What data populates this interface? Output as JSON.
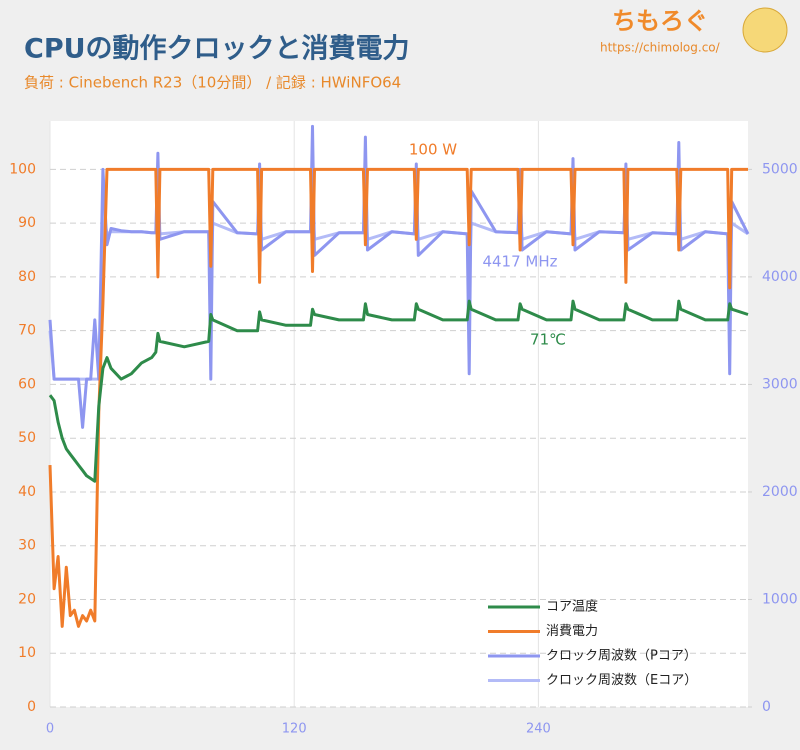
{
  "logo": {
    "name": "ちもろぐ",
    "url": "https://chimolog.co/"
  },
  "chart_data": {
    "type": "line",
    "title": "CPUの動作クロックと消費電力",
    "subtitle": "負荷 : Cinebench R23（10分間） / 記録 : HWiNFO64",
    "annotations": [
      "100 W",
      "4417 MHz",
      "71℃"
    ],
    "x": [
      0,
      2,
      4,
      6,
      8,
      10,
      12,
      14,
      16,
      18,
      20,
      22,
      24,
      26,
      28,
      30,
      35,
      40,
      45,
      50,
      52,
      53,
      54,
      66,
      78,
      79,
      80,
      92,
      102,
      103,
      104,
      116,
      128,
      129,
      130,
      142,
      154,
      155,
      156,
      168,
      179,
      180,
      181,
      193,
      205,
      206,
      207,
      219,
      230,
      231,
      232,
      244,
      256,
      257,
      258,
      270,
      282,
      283,
      284,
      296,
      308,
      309,
      310,
      322,
      333,
      334,
      335,
      343
    ],
    "xlim": [
      0,
      343
    ],
    "xticks": [
      0,
      120,
      240
    ],
    "ylim": [
      0,
      109
    ],
    "yticks": [
      0,
      10,
      20,
      30,
      40,
      50,
      60,
      70,
      80,
      90,
      100
    ],
    "y2lim": [
      0,
      5450
    ],
    "y2ticks": [
      0,
      1000,
      2000,
      3000,
      4000,
      5000
    ],
    "grid": true,
    "legend": "lower right",
    "series": [
      {
        "name": "コア温度",
        "color": "#2e8b4a",
        "values": [
          58,
          57,
          53,
          50,
          48,
          47,
          46,
          45,
          44,
          43,
          42.5,
          42,
          56,
          63,
          65,
          63,
          61,
          62,
          64,
          65,
          66,
          69.5,
          68,
          67,
          68,
          73,
          72,
          70,
          70,
          73.5,
          72,
          71,
          71,
          74,
          73,
          72,
          72,
          75,
          73,
          72,
          72,
          75,
          74,
          72,
          72,
          75.5,
          74,
          72,
          72,
          75,
          74,
          72,
          72,
          75.5,
          74,
          72,
          72,
          75,
          74,
          72,
          72,
          75.5,
          74,
          72,
          72,
          75,
          74,
          73
        ]
      },
      {
        "name": "消費電力",
        "color": "#f07c2a",
        "values": [
          45,
          22,
          28,
          15,
          26,
          17,
          18,
          15,
          17,
          16,
          18,
          16,
          55,
          75,
          100,
          100,
          100,
          100,
          100,
          100,
          100,
          80,
          100,
          100,
          100,
          82,
          100,
          100,
          100,
          79,
          100,
          100,
          100,
          81,
          100,
          100,
          100,
          86,
          100,
          100,
          100,
          87,
          100,
          100,
          100,
          86,
          100,
          100,
          100,
          85,
          100,
          100,
          100,
          86,
          100,
          100,
          100,
          79,
          100,
          100,
          100,
          85,
          100,
          100,
          100,
          78,
          100,
          100
        ]
      },
      {
        "name": "クロック周波数（Pコア）",
        "color": "#8e96f0",
        "axis": "y2",
        "values": [
          3600,
          3050,
          3050,
          3050,
          3050,
          3050,
          3050,
          3050,
          2600,
          3050,
          3050,
          3600,
          3050,
          5000,
          4300,
          4450,
          4430,
          4420,
          4420,
          4410,
          4410,
          5150,
          4350,
          4420,
          4420,
          3050,
          4700,
          4410,
          4400,
          5050,
          4250,
          4420,
          4420,
          5400,
          4200,
          4410,
          4410,
          5300,
          4250,
          4420,
          4400,
          5050,
          4200,
          4420,
          4400,
          3100,
          4800,
          4420,
          4410,
          5000,
          4250,
          4420,
          4400,
          5100,
          4250,
          4420,
          4410,
          5050,
          4250,
          4410,
          4400,
          5250,
          4250,
          4420,
          4400,
          3100,
          4700,
          4400
        ]
      },
      {
        "name": "クロック周波数（Eコア）",
        "color": "#b3bbf7",
        "axis": "y2",
        "values": [
          3500,
          3050,
          3050,
          3050,
          3050,
          3050,
          3050,
          3050,
          3050,
          3050,
          3050,
          3050,
          3050,
          4600,
          4400,
          4420,
          4420,
          4420,
          4420,
          4410,
          4410,
          4600,
          4400,
          4420,
          4420,
          3900,
          4500,
          4410,
          4400,
          4600,
          4350,
          4420,
          4420,
          4700,
          4350,
          4410,
          4410,
          4650,
          4350,
          4420,
          4400,
          4600,
          4350,
          4420,
          4400,
          3900,
          4500,
          4420,
          4410,
          4600,
          4350,
          4420,
          4400,
          4600,
          4350,
          4420,
          4410,
          4600,
          4350,
          4410,
          4400,
          4650,
          4350,
          4420,
          4400,
          3900,
          4500,
          4400
        ]
      }
    ]
  }
}
